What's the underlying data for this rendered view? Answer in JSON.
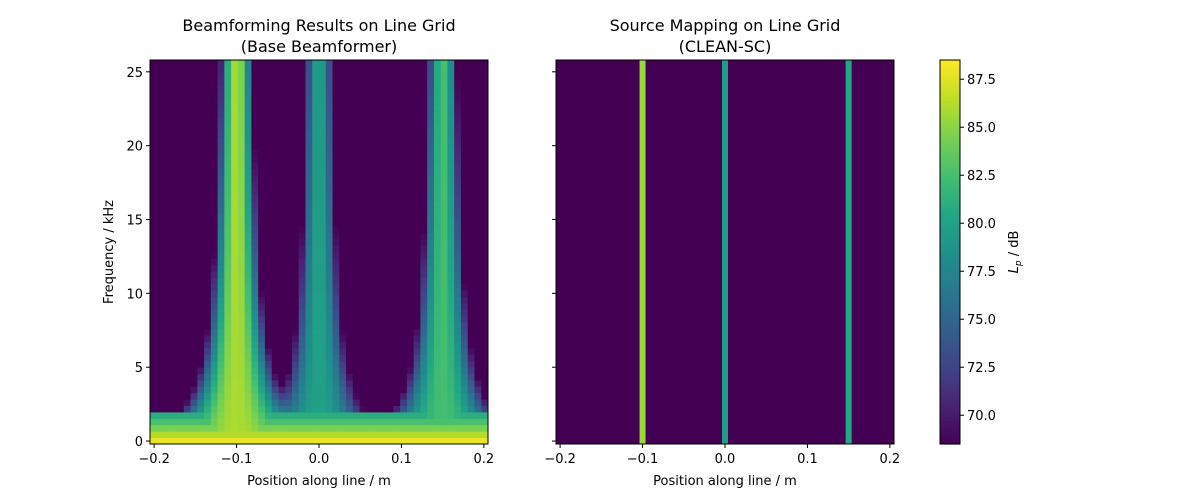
{
  "chart_data": [
    {
      "type": "heatmap",
      "title_line1": "Beamforming Results on Line Grid",
      "title_line2": "(Base Beamformer)",
      "xlabel": "Position along line / m",
      "ylabel": "Frequency / kHz",
      "xlim": [
        -0.205,
        0.205
      ],
      "ylim": [
        -0.2,
        25.8
      ],
      "xticks": [
        -0.2,
        -0.1,
        0.0,
        0.1,
        0.2
      ],
      "xtick_labels": [
        "−0.2",
        "−0.1",
        "0.0",
        "0.1",
        "0.2"
      ],
      "yticks": [
        0,
        5,
        10,
        15,
        20,
        25
      ],
      "ytick_labels": [
        "0",
        "5",
        "10",
        "15",
        "20",
        "25"
      ],
      "sources": [
        {
          "position": -0.1,
          "peak_level_db": 86.0
        },
        {
          "position": 0.0,
          "peak_level_db": 80.0
        },
        {
          "position": 0.15,
          "peak_level_db": 82.5
        }
      ],
      "color_scale": "viridis",
      "vmin": 68.5,
      "vmax": 88.5
    },
    {
      "type": "heatmap",
      "title_line1": "Source Mapping on Line Grid",
      "title_line2": "(CLEAN-SC)",
      "xlabel": "Position along line / m",
      "xlim": [
        -0.205,
        0.205
      ],
      "ylim": [
        -0.2,
        25.8
      ],
      "xticks": [
        -0.2,
        -0.1,
        0.0,
        0.1,
        0.2
      ],
      "xtick_labels": [
        "−0.2",
        "−0.1",
        "0.0",
        "0.1",
        "0.2"
      ],
      "yticks": [
        0,
        5,
        10,
        15,
        20,
        25
      ],
      "sources": [
        {
          "position": -0.1,
          "level_db": 85.5
        },
        {
          "position": 0.0,
          "level_db": 79.5
        },
        {
          "position": 0.15,
          "level_db": 80.5
        }
      ],
      "color_scale": "viridis",
      "vmin": 68.5,
      "vmax": 88.5
    }
  ],
  "colorbar": {
    "label": "L_p / dB",
    "ticks": [
      70.0,
      72.5,
      75.0,
      77.5,
      80.0,
      82.5,
      85.0,
      87.5
    ],
    "tick_labels": [
      "70.0",
      "72.5",
      "75.0",
      "77.5",
      "80.0",
      "82.5",
      "85.0",
      "87.5"
    ],
    "range": [
      68.5,
      88.5
    ]
  }
}
